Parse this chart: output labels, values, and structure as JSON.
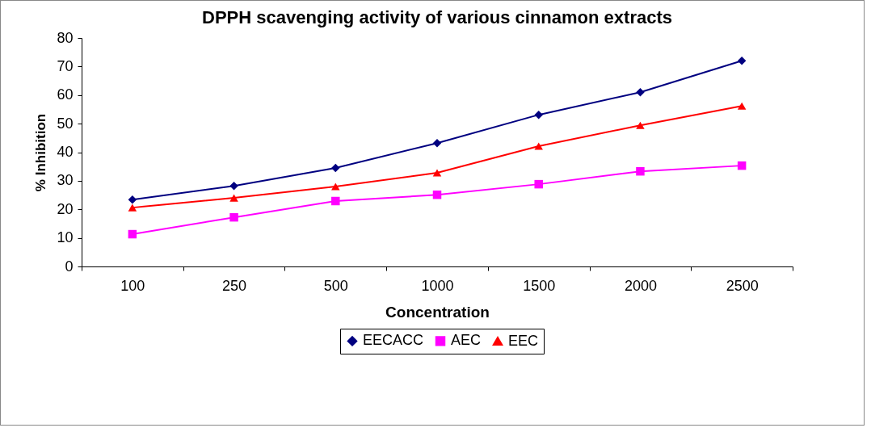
{
  "chart_data": {
    "type": "line",
    "title": "DPPH scavenging activity of various cinnamon extracts",
    "xlabel": "Concentration",
    "ylabel": "% Inhibition",
    "categories": [
      "100",
      "250",
      "500",
      "1000",
      "1500",
      "2000",
      "2500"
    ],
    "ylim": [
      0,
      80
    ],
    "yticks": [
      0,
      10,
      20,
      30,
      40,
      50,
      60,
      70,
      80
    ],
    "grid": false,
    "legend": "bottom",
    "series": [
      {
        "name": "EECACC",
        "color": "#000080",
        "marker": "diamond",
        "values": [
          23.4,
          28.2,
          34.5,
          43.2,
          53.1,
          61,
          72
        ]
      },
      {
        "name": "AEC",
        "color": "#ff00ff",
        "marker": "square",
        "values": [
          11.3,
          17.2,
          22.9,
          25.1,
          28.8,
          33.3,
          35.3
        ]
      },
      {
        "name": "EEC",
        "color": "#ff0000",
        "marker": "triangle",
        "values": [
          20.6,
          24,
          28,
          32.8,
          42.1,
          49.4,
          56.2
        ]
      }
    ]
  }
}
